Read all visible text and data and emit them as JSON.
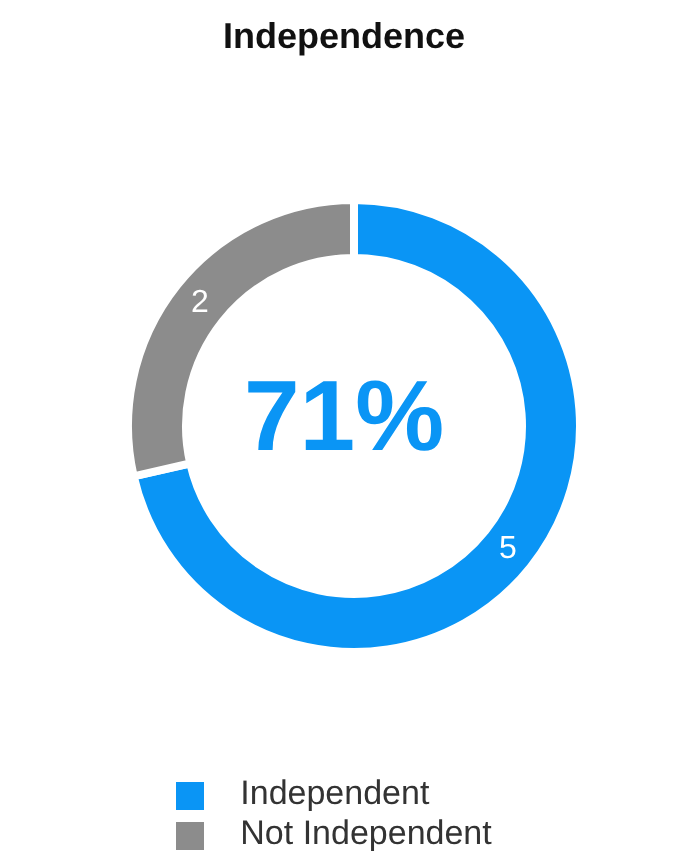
{
  "chart_data": {
    "type": "donut",
    "title": "Independence",
    "categories": [
      "Independent",
      "Not Independent"
    ],
    "values": [
      5,
      2
    ],
    "colors": [
      "#0a95f5",
      "#8c8c8c"
    ],
    "data_labels": true,
    "annotations": [
      "71%"
    ],
    "legend": "bottom"
  }
}
